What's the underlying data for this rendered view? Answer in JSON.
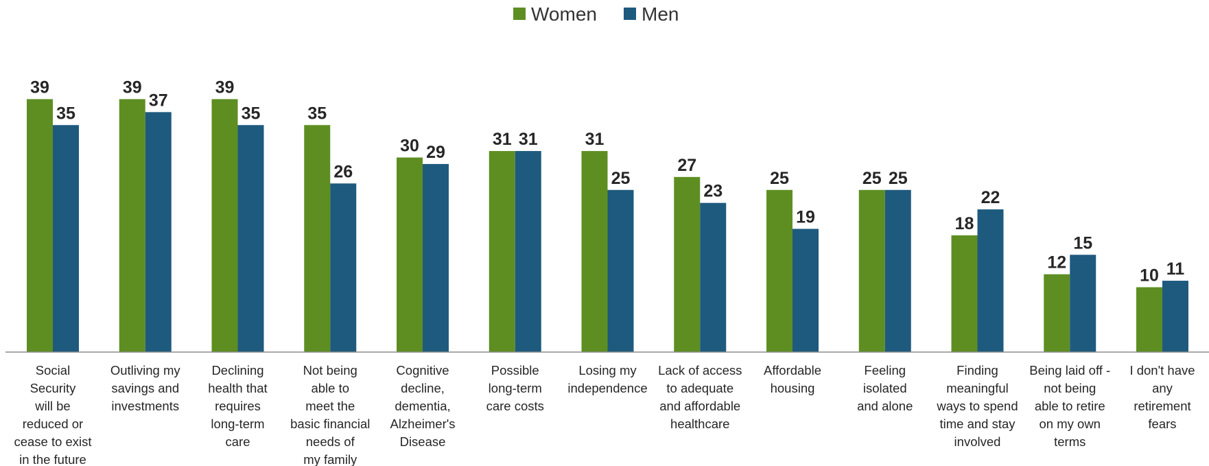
{
  "chart_data": {
    "type": "bar",
    "title": "",
    "xlabel": "",
    "ylabel": "",
    "ylim": [
      0,
      40
    ],
    "grid": false,
    "legend_position": "top-center",
    "categories": [
      "Social Security will be reduced or cease to exist in the future",
      "Outliving my savings and investments",
      "Declining health that requires long-term care",
      "Not being able to meet the basic financial needs of my family",
      "Cognitive decline, dementia, Alzheimer's Disease",
      "Possible long-term care costs",
      "Losing my independence",
      "Lack of access to adequate and affordable healthcare",
      "Affordable housing",
      "Feeling isolated and alone",
      "Finding meaningful ways to spend time and stay involved",
      "Being laid off - not being able to retire on my own terms",
      "I don't have any retirement fears"
    ],
    "category_lines": [
      [
        "Social",
        "Security",
        "will be",
        "reduced or",
        "cease to exist",
        "in the future"
      ],
      [
        "Outliving my",
        "savings and",
        "investments"
      ],
      [
        "Declining",
        "health that",
        "requires",
        "long-term",
        "care"
      ],
      [
        "Not being",
        "able to",
        "meet the",
        "basic financial",
        "needs of",
        "my family"
      ],
      [
        "Cognitive",
        "decline,",
        "dementia,",
        "Alzheimer's",
        "Disease"
      ],
      [
        "Possible",
        "long-term",
        "care costs"
      ],
      [
        "Losing my",
        "independence"
      ],
      [
        "Lack of access",
        "to adequate",
        "and affordable",
        "healthcare"
      ],
      [
        "Affordable",
        "housing"
      ],
      [
        "Feeling",
        "isolated",
        "and alone"
      ],
      [
        "Finding",
        "meaningful",
        "ways to spend",
        "time and stay",
        "involved"
      ],
      [
        "Being laid off -",
        "not being",
        "able to retire",
        "on my own",
        "terms"
      ],
      [
        "I don't have",
        "any",
        "retirement",
        "fears"
      ]
    ],
    "series": [
      {
        "name": "Women",
        "color": "#5e8e22",
        "values": [
          39,
          39,
          39,
          35,
          30,
          31,
          31,
          27,
          25,
          25,
          18,
          12,
          10
        ]
      },
      {
        "name": "Men",
        "color": "#1e5a7e",
        "values": [
          35,
          37,
          35,
          26,
          29,
          31,
          25,
          23,
          19,
          25,
          22,
          15,
          11
        ]
      }
    ]
  }
}
